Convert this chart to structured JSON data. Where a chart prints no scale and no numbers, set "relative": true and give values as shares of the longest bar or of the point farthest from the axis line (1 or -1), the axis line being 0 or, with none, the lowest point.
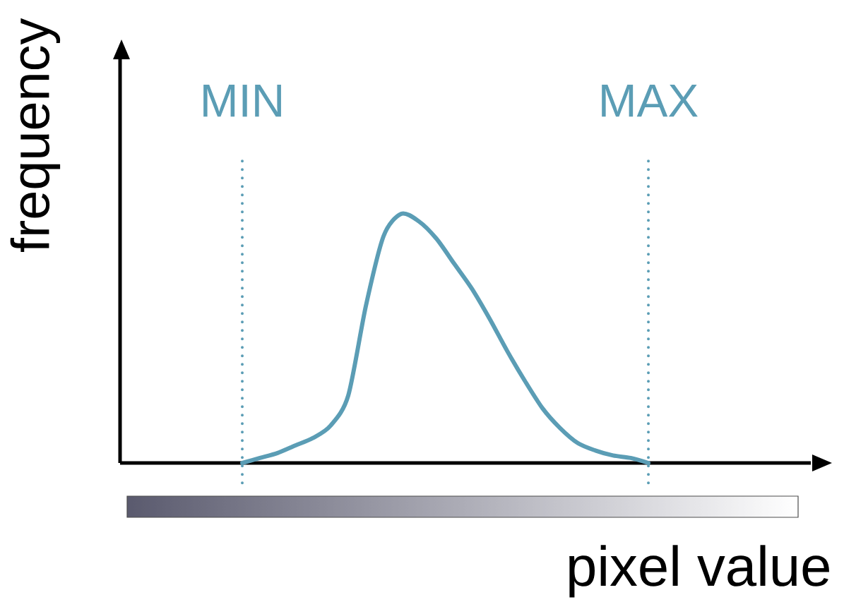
{
  "chart_data": {
    "type": "line",
    "relative": true,
    "xlabel": "pixel value",
    "ylabel": "frequency",
    "categories": [
      null,
      null,
      null,
      null,
      null,
      null,
      null,
      null,
      null,
      null,
      null,
      null,
      null,
      null,
      null,
      null,
      null,
      null,
      null,
      null,
      null,
      null,
      null,
      null,
      null,
      null,
      null,
      null,
      null,
      null,
      null,
      null,
      null,
      null,
      null,
      null,
      null,
      null,
      null
    ],
    "values": [
      null,
      null,
      null,
      null,
      null,
      null,
      null,
      0,
      0.02,
      0.04,
      0.07,
      0.1,
      0.15,
      0.27,
      0.63,
      0.91,
      1.0,
      0.97,
      0.9,
      0.8,
      0.7,
      0.58,
      0.45,
      0.33,
      0.22,
      0.14,
      0.08,
      0.05,
      0.03,
      0.02,
      0,
      null,
      null,
      null,
      null,
      null,
      null,
      null,
      null
    ],
    "color": "#5b9db5",
    "annotations": [
      "MIN",
      "MAX"
    ]
  }
}
